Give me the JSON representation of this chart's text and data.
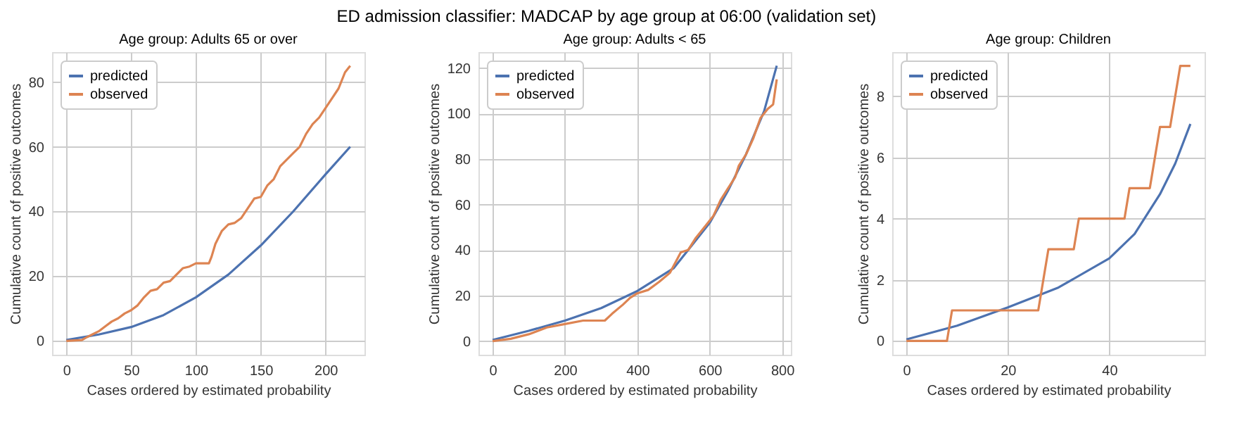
{
  "chart_data": [
    {
      "type": "line",
      "annotations": [
        "ED admission classifier: MADCAP by age group at 06:00 (validation set)"
      ],
      "title": "Age group: Adults 65 or over",
      "xlabel": "Cases ordered by estimated probability",
      "ylabel": "Cumulative count of positive outcomes",
      "xlim": [
        -11,
        230
      ],
      "ylim": [
        -4.25,
        89.25
      ],
      "xticks": [
        0,
        50,
        100,
        150,
        200
      ],
      "yticks": [
        0,
        20,
        40,
        60,
        80
      ],
      "grid": true,
      "legend": "top left",
      "series": [
        {
          "name": "predicted",
          "color": "#4c72b0",
          "x": [
            0,
            25,
            50,
            75,
            100,
            125,
            150,
            175,
            200,
            219
          ],
          "values": [
            0.3,
            2,
            4.3,
            8,
            13.5,
            20.5,
            29.5,
            40,
            51.5,
            60
          ]
        },
        {
          "name": "observed",
          "color": "#dd8452",
          "x": [
            0,
            12,
            15,
            20,
            25,
            30,
            35,
            40,
            45,
            50,
            55,
            60,
            65,
            70,
            75,
            80,
            85,
            90,
            95,
            100,
            110,
            112,
            115,
            120,
            125,
            130,
            135,
            140,
            145,
            150,
            155,
            160,
            165,
            170,
            175,
            180,
            185,
            190,
            195,
            200,
            205,
            210,
            215,
            219
          ],
          "values": [
            0,
            0.3,
            1,
            2,
            3,
            4.5,
            6,
            7,
            8.5,
            9.5,
            11,
            13.5,
            15.5,
            16,
            18,
            18.5,
            20.5,
            22.5,
            23,
            24,
            24,
            26,
            30,
            34,
            36,
            36.5,
            38,
            41,
            44,
            44.5,
            48,
            50,
            54,
            56,
            58,
            60,
            64,
            67,
            69,
            72,
            75,
            78,
            83,
            85
          ]
        }
      ]
    },
    {
      "type": "line",
      "title": "Age group: Adults < 65",
      "xlabel": "Cases ordered by estimated probability",
      "ylabel": "Cumulative count of positive outcomes",
      "xlim": [
        -39,
        824
      ],
      "ylim": [
        -6,
        127
      ],
      "xticks": [
        0,
        200,
        400,
        600,
        800
      ],
      "yticks": [
        0,
        20,
        40,
        60,
        80,
        100,
        120
      ],
      "grid": true,
      "legend": "top left",
      "series": [
        {
          "name": "predicted",
          "color": "#4c72b0",
          "x": [
            0,
            100,
            200,
            300,
            400,
            500,
            600,
            650,
            700,
            750,
            785
          ],
          "values": [
            0.5,
            4.5,
            9,
            14.5,
            22,
            32,
            52,
            66,
            82,
            101,
            121
          ]
        },
        {
          "name": "observed",
          "color": "#dd8452",
          "x": [
            0,
            50,
            100,
            150,
            200,
            250,
            310,
            330,
            360,
            380,
            400,
            430,
            460,
            490,
            520,
            540,
            560,
            590,
            610,
            630,
            650,
            670,
            680,
            700,
            720,
            740,
            760,
            775,
            785
          ],
          "values": [
            0,
            1,
            3,
            6,
            7.5,
            9,
            9,
            12,
            16,
            19,
            21,
            22.5,
            26,
            30,
            39,
            40,
            45,
            51,
            55,
            62,
            67,
            72,
            77,
            82,
            89,
            98,
            102,
            104,
            115
          ]
        }
      ]
    },
    {
      "type": "line",
      "title": "Age group: Children",
      "xlabel": "Cases ordered by estimated probability",
      "ylabel": "Cumulative count of positive outcomes",
      "xlim": [
        -2.8,
        58.8
      ],
      "ylim": [
        -0.45,
        9.45
      ],
      "xticks": [
        0,
        20,
        40
      ],
      "yticks": [
        0,
        2,
        4,
        6,
        8
      ],
      "grid": true,
      "legend": "top left",
      "series": [
        {
          "name": "predicted",
          "color": "#4c72b0",
          "x": [
            0,
            10,
            20,
            30,
            40,
            45,
            50,
            53,
            56
          ],
          "values": [
            0.05,
            0.5,
            1.1,
            1.75,
            2.7,
            3.5,
            4.8,
            5.8,
            7.1
          ]
        },
        {
          "name": "observed",
          "color": "#dd8452",
          "x": [
            0,
            8,
            9,
            26,
            28,
            33,
            34,
            43,
            44,
            48,
            50,
            52,
            54,
            56
          ],
          "values": [
            0,
            0,
            1,
            1,
            3,
            3,
            4,
            4,
            5,
            5,
            7,
            7,
            9,
            9
          ]
        }
      ]
    }
  ]
}
